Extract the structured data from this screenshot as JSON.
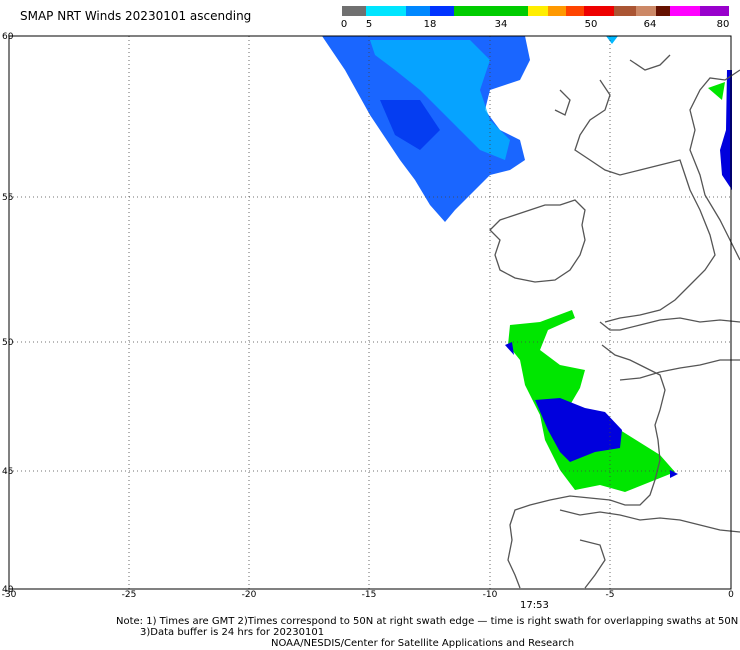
{
  "title": "SMAP NRT Winds 20230101 ascending",
  "colorbar": {
    "labels": [
      "0",
      "5",
      "18",
      "34",
      "50",
      "64",
      "80"
    ],
    "colors": [
      "#7f7f7f",
      "#00e5ff",
      "#0066ff",
      "#00cc00",
      "#ffee00",
      "#ff9900",
      "#ff2200",
      "#dd0000",
      "#8b4513",
      "#aa6644",
      "#ff00ff",
      "#9900cc"
    ]
  },
  "axes": {
    "lon_ticks": [
      "-30",
      "-25",
      "-20",
      "-15",
      "-10",
      "-5",
      "0"
    ],
    "lat_ticks": [
      "60",
      "55",
      "50",
      "45",
      "40"
    ]
  },
  "time_label": "17:53",
  "notes": {
    "line1": "Note: 1) Times are GMT 2)Times correspond to 50N at right swath edge — time is right swath for overlapping swaths at 50N",
    "line2": "3)Data buffer is 24 hrs for 20230101",
    "line3": "NOAA/NESDIS/Center for Satellite Applications and Research"
  },
  "colors": {
    "light_blue": "#00c0ff",
    "mid_blue": "#0066ff",
    "dark_blue": "#0000dd",
    "green": "#00e600",
    "coast": "#555555"
  }
}
